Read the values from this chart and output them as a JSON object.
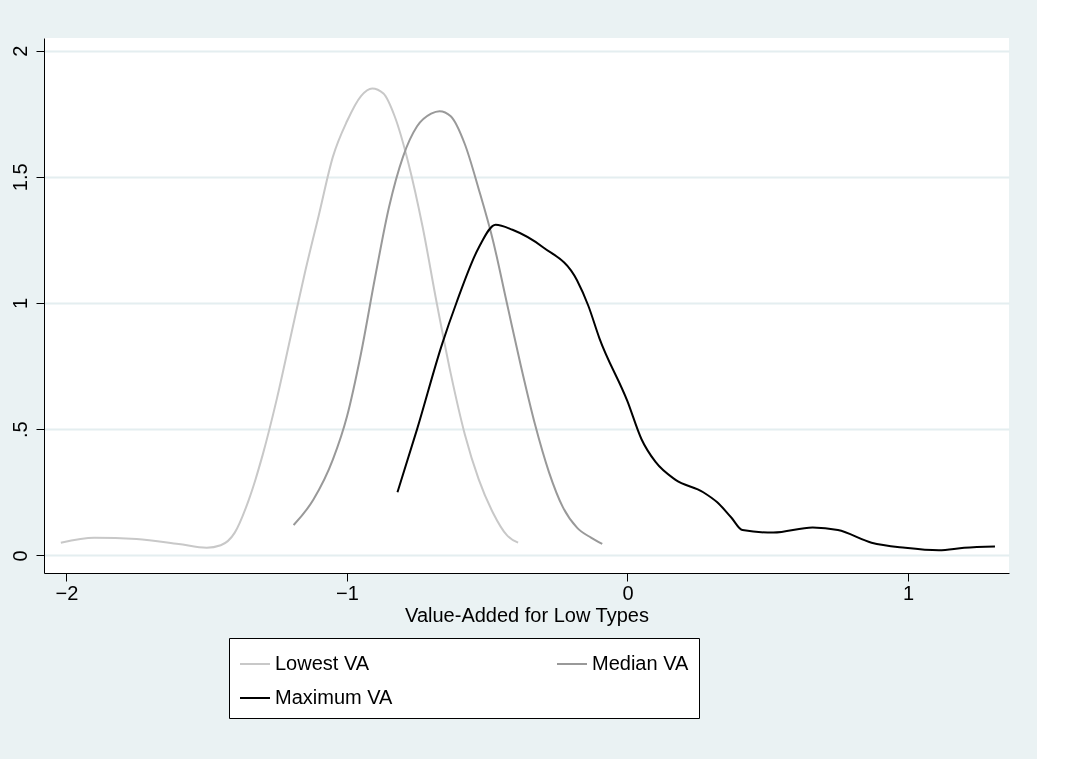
{
  "chart_data": {
    "type": "line",
    "xlabel": "Value-Added for Low Types",
    "xlim": [
      -2.08,
      1.36
    ],
    "xticks": [
      -2,
      -1,
      0,
      1
    ],
    "ylim": [
      -0.07,
      2.05
    ],
    "yticks": [
      0,
      {
        "value": 0.5,
        "label": ".5"
      },
      1,
      1.5,
      2
    ],
    "grid": "y",
    "legend": "bottom",
    "marker": "none",
    "line_style": "solid",
    "series": [
      {
        "name": "Lowest VA",
        "color": "#c8c8c8",
        "x": [
          -2.02,
          -1.9,
          -1.75,
          -1.6,
          -1.5,
          -1.45,
          -1.4,
          -1.35,
          -1.3,
          -1.25,
          -1.2,
          -1.15,
          -1.1,
          -1.05,
          -1.0,
          -0.95,
          -0.91,
          -0.87,
          -0.83,
          -0.78,
          -0.73,
          -0.68,
          -0.63,
          -0.58,
          -0.53,
          -0.48,
          -0.43,
          -0.39
        ],
        "values": [
          0.05,
          0.07,
          0.065,
          0.045,
          0.03,
          0.04,
          0.09,
          0.22,
          0.4,
          0.62,
          0.87,
          1.12,
          1.35,
          1.58,
          1.72,
          1.82,
          1.85,
          1.83,
          1.74,
          1.55,
          1.3,
          1.0,
          0.72,
          0.48,
          0.3,
          0.17,
          0.08,
          0.05
        ]
      },
      {
        "name": "Median VA",
        "color": "#999999",
        "x": [
          -1.19,
          -1.12,
          -1.05,
          -1.0,
          -0.95,
          -0.9,
          -0.85,
          -0.8,
          -0.75,
          -0.7,
          -0.67,
          -0.63,
          -0.58,
          -0.53,
          -0.48,
          -0.43,
          -0.38,
          -0.33,
          -0.28,
          -0.23,
          -0.18,
          -0.13,
          -0.09
        ],
        "values": [
          0.12,
          0.22,
          0.38,
          0.55,
          0.8,
          1.1,
          1.38,
          1.58,
          1.7,
          1.75,
          1.76,
          1.74,
          1.63,
          1.45,
          1.25,
          1.0,
          0.75,
          0.52,
          0.33,
          0.19,
          0.11,
          0.07,
          0.045
        ]
      },
      {
        "name": "Maximum VA",
        "color": "#000000",
        "x": [
          -0.82,
          -0.75,
          -0.66,
          -0.61,
          -0.53,
          -0.47,
          -0.41,
          -0.3,
          -0.18,
          -0.14,
          -0.1,
          0.0,
          0.05,
          0.1,
          0.17,
          0.27,
          0.32,
          0.37,
          0.41,
          0.52,
          0.66,
          0.75,
          0.87,
          0.99,
          1.11,
          1.2,
          1.31
        ],
        "values": [
          0.25,
          0.5,
          0.84,
          1.0,
          1.22,
          1.31,
          1.29,
          1.22,
          1.09,
          0.99,
          0.86,
          0.61,
          0.46,
          0.37,
          0.3,
          0.25,
          0.21,
          0.15,
          0.1,
          0.09,
          0.11,
          0.1,
          0.05,
          0.03,
          0.02,
          0.03,
          0.035
        ]
      }
    ]
  }
}
